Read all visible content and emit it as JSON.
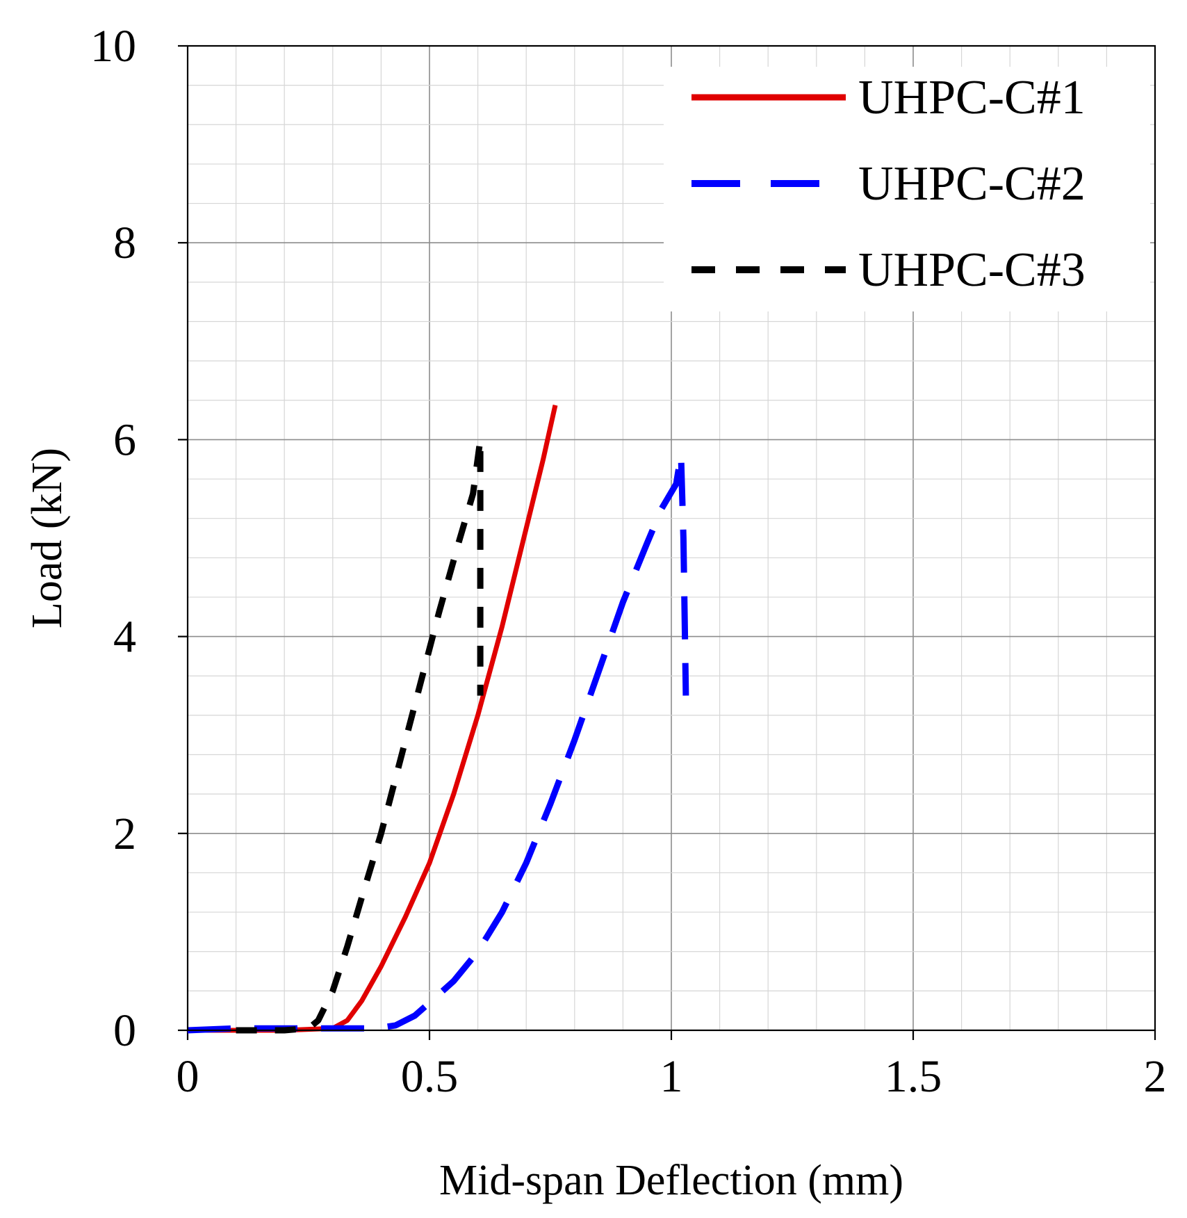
{
  "chart_data": {
    "type": "line",
    "title": "",
    "xlabel": "Mid-span Deflection (mm)",
    "ylabel": "Load (kN)",
    "xlim": [
      0,
      2
    ],
    "ylim": [
      0,
      10
    ],
    "x_ticks": [
      "0",
      "0.5",
      "1",
      "1.5",
      "2"
    ],
    "y_ticks": [
      "0",
      "2",
      "4",
      "6",
      "8",
      "10"
    ],
    "grid": true,
    "legend_position": "top-right",
    "series": [
      {
        "name": "UHPC-C#1",
        "color": "#e00000",
        "style": "solid",
        "points": [
          [
            0.0,
            0.0
          ],
          [
            0.1,
            0.0
          ],
          [
            0.2,
            0.0
          ],
          [
            0.3,
            0.02
          ],
          [
            0.33,
            0.1
          ],
          [
            0.36,
            0.3
          ],
          [
            0.4,
            0.65
          ],
          [
            0.45,
            1.15
          ],
          [
            0.5,
            1.7
          ],
          [
            0.55,
            2.4
          ],
          [
            0.6,
            3.2
          ],
          [
            0.65,
            4.1
          ],
          [
            0.7,
            5.1
          ],
          [
            0.735,
            5.8
          ],
          [
            0.76,
            6.35
          ]
        ]
      },
      {
        "name": "UHPC-C#2",
        "color": "#0000ff",
        "style": "long-dash",
        "points": [
          [
            0.0,
            0.0
          ],
          [
            0.1,
            0.02
          ],
          [
            0.2,
            0.02
          ],
          [
            0.3,
            0.02
          ],
          [
            0.39,
            0.02
          ],
          [
            0.43,
            0.05
          ],
          [
            0.47,
            0.15
          ],
          [
            0.5,
            0.28
          ],
          [
            0.55,
            0.5
          ],
          [
            0.6,
            0.8
          ],
          [
            0.65,
            1.2
          ],
          [
            0.7,
            1.7
          ],
          [
            0.75,
            2.3
          ],
          [
            0.8,
            2.95
          ],
          [
            0.85,
            3.65
          ],
          [
            0.9,
            4.35
          ],
          [
            0.95,
            4.95
          ],
          [
            0.98,
            5.3
          ],
          [
            1.01,
            5.55
          ],
          [
            1.02,
            5.85
          ],
          [
            1.025,
            5.0
          ],
          [
            1.03,
            3.4
          ]
        ]
      },
      {
        "name": "UHPC-C#3",
        "color": "#000000",
        "style": "short-dash",
        "points": [
          [
            0.1,
            0.0
          ],
          [
            0.2,
            0.0
          ],
          [
            0.25,
            0.02
          ],
          [
            0.27,
            0.1
          ],
          [
            0.3,
            0.4
          ],
          [
            0.33,
            0.85
          ],
          [
            0.36,
            1.35
          ],
          [
            0.4,
            2.0
          ],
          [
            0.44,
            2.75
          ],
          [
            0.48,
            3.5
          ],
          [
            0.52,
            4.25
          ],
          [
            0.56,
            4.95
          ],
          [
            0.59,
            5.45
          ],
          [
            0.605,
            6.0
          ],
          [
            0.605,
            5.2
          ],
          [
            0.605,
            4.4
          ],
          [
            0.605,
            3.4
          ]
        ]
      }
    ]
  }
}
